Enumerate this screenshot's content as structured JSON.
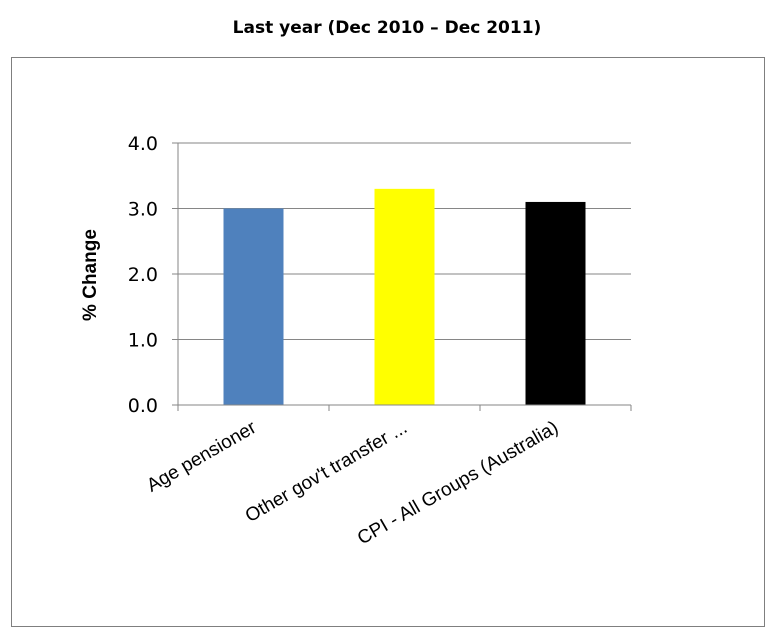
{
  "page": {
    "title": "Last year (Dec 2010 – Dec 2011)"
  },
  "chart_data": {
    "type": "bar",
    "title": "",
    "xlabel": "",
    "ylabel": "% Change",
    "categories": [
      "Age pensioner",
      "Other gov't transfer ...",
      "CPI - All Groups (Australia)"
    ],
    "values": [
      3.0,
      3.3,
      3.1
    ],
    "colors": [
      "#4f81bd",
      "#ffff00",
      "#000000"
    ],
    "ylim": [
      0,
      4
    ],
    "yticks": [
      "0.0",
      "1.0",
      "2.0",
      "3.0",
      "4.0"
    ],
    "grid": true,
    "legend": "none"
  }
}
